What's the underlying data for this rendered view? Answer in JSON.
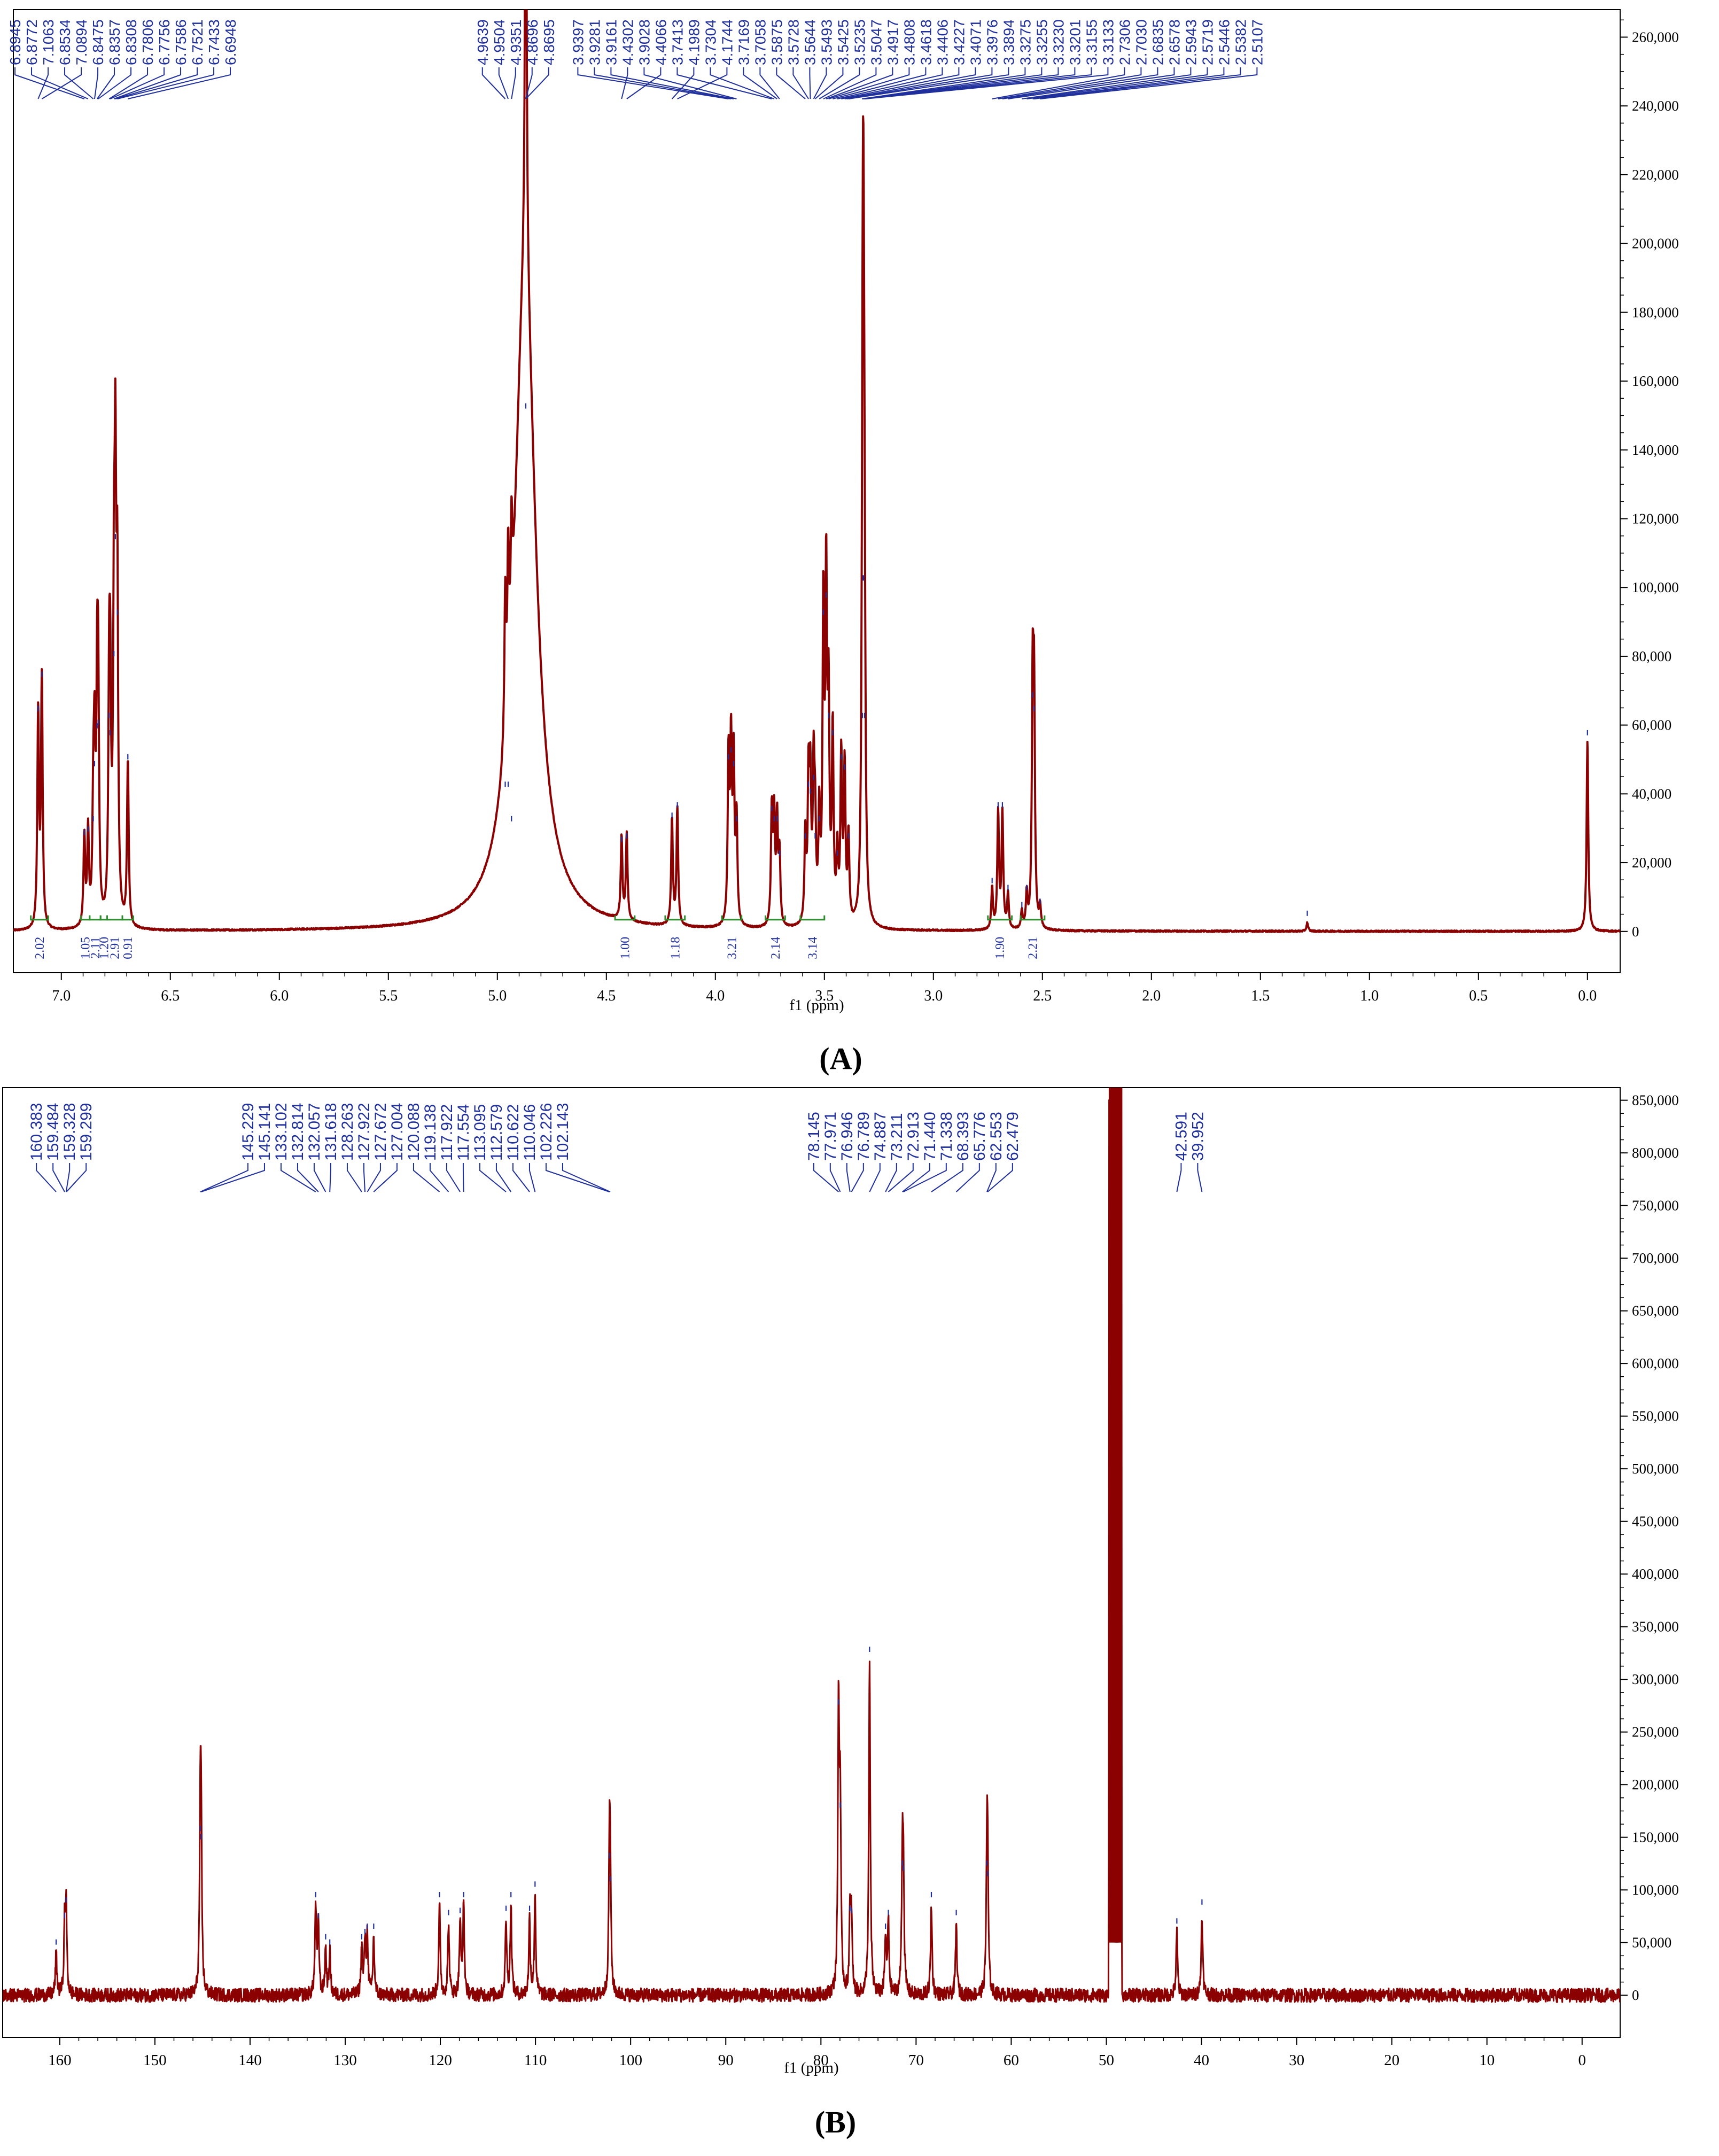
{
  "colors": {
    "spectrum": "#8B0000",
    "peak_label": "#1F2F9C",
    "integral": "#2E8B2E",
    "axis": "#000000"
  },
  "chart_data": [
    {
      "type": "line",
      "caption": "(A)",
      "xlabel": "f1 (ppm)",
      "x_reversed": true,
      "xlim": [
        7.22,
        -0.15
      ],
      "ylim": [
        -12000,
        268000
      ],
      "x_ticks": [
        7.0,
        6.5,
        6.0,
        5.5,
        5.0,
        4.5,
        4.0,
        3.5,
        3.0,
        2.5,
        2.0,
        1.5,
        1.0,
        0.5,
        0.0
      ],
      "x_tick_labels": [
        "7.0",
        "6.5",
        "6.0",
        "5.5",
        "5.0",
        "4.5",
        "4.0",
        "3.5",
        "3.0",
        "2.5",
        "2.0",
        "1.5",
        "1.0",
        "0.5",
        "0.0"
      ],
      "y_ticks": [
        0,
        20000,
        40000,
        60000,
        80000,
        100000,
        120000,
        140000,
        160000,
        180000,
        200000,
        220000,
        240000,
        260000
      ],
      "y_tick_labels": [
        "0",
        "20,000",
        "40,000",
        "60,000",
        "80,000",
        "100,000",
        "120,000",
        "140,000",
        "160,000",
        "180,000",
        "200,000",
        "220,000",
        "240,000",
        "260,000"
      ],
      "peak_label_groups": [
        [
          "7.1063",
          "7.0894"
        ],
        [
          "6.8945",
          "6.8772",
          "6.8534",
          "6.8475",
          "6.8357",
          "6.8308",
          "6.7806",
          "6.7756",
          "6.7586",
          "6.7521",
          "6.7433",
          "6.6948"
        ],
        [
          "4.9639",
          "4.9504",
          "4.9351",
          "4.8696",
          "4.8695"
        ],
        [
          "4.4302",
          "4.4066",
          "4.1989",
          "4.1744"
        ],
        [
          "3.9397",
          "3.9281",
          "3.9161",
          "3.9028",
          "3.7413",
          "3.7304",
          "3.7169",
          "3.7058",
          "3.5875",
          "3.5728",
          "3.5644",
          "3.5493",
          "3.5425",
          "3.5235",
          "3.5047",
          "3.4917",
          "3.4808",
          "3.4618",
          "3.4406",
          "3.4227",
          "3.4071",
          "3.3976",
          "3.3894",
          "3.3275",
          "3.3255",
          "3.3230",
          "3.3201",
          "3.3155",
          "3.3133",
          "2.7306",
          "2.7030",
          "2.6835",
          "2.6578",
          "2.5943",
          "2.5719",
          "2.5446",
          "2.5382",
          "2.5107"
        ]
      ],
      "integrals": [
        {
          "label": "2.02",
          "from": 7.14,
          "to": 7.06
        },
        {
          "label": "1.05",
          "from": 6.91,
          "to": 6.87
        },
        {
          "label": "2.11",
          "from": 6.87,
          "to": 6.82
        },
        {
          "label": "1.20",
          "from": 6.82,
          "to": 6.79
        },
        {
          "label": "2.91",
          "from": 6.79,
          "to": 6.72
        },
        {
          "label": "0.91",
          "from": 6.72,
          "to": 6.67
        },
        {
          "label": "1.00",
          "from": 4.46,
          "to": 4.37
        },
        {
          "label": "1.18",
          "from": 4.23,
          "to": 4.14
        },
        {
          "label": "3.21",
          "from": 3.97,
          "to": 3.88
        },
        {
          "label": "2.14",
          "from": 3.77,
          "to": 3.68
        },
        {
          "label": "3.14",
          "from": 3.61,
          "to": 3.5
        },
        {
          "label": "1.90",
          "from": 2.75,
          "to": 2.64
        },
        {
          "label": "2.21",
          "from": 2.6,
          "to": 2.49
        }
      ],
      "peaks": [
        {
          "x": 7.1063,
          "y": 62000
        },
        {
          "x": 7.0894,
          "y": 72000
        },
        {
          "x": 6.8945,
          "y": 26000
        },
        {
          "x": 6.8772,
          "y": 27000
        },
        {
          "x": 6.8534,
          "y": 30000
        },
        {
          "x": 6.8475,
          "y": 46000
        },
        {
          "x": 6.8357,
          "y": 57000
        },
        {
          "x": 6.8308,
          "y": 58000
        },
        {
          "x": 6.7806,
          "y": 60000
        },
        {
          "x": 6.7756,
          "y": 55000
        },
        {
          "x": 6.7586,
          "y": 78000
        },
        {
          "x": 6.7521,
          "y": 112000
        },
        {
          "x": 6.7433,
          "y": 90000
        },
        {
          "x": 6.6948,
          "y": 48000
        },
        {
          "x": 4.9639,
          "y": 40000
        },
        {
          "x": 4.9504,
          "y": 40000
        },
        {
          "x": 4.9351,
          "y": 30000
        },
        {
          "x": 4.8696,
          "y": 150000
        },
        {
          "x": 4.4302,
          "y": 24000
        },
        {
          "x": 4.4066,
          "y": 25000
        },
        {
          "x": 4.1989,
          "y": 31000
        },
        {
          "x": 4.1744,
          "y": 34000
        },
        {
          "x": 3.9397,
          "y": 48000
        },
        {
          "x": 3.9281,
          "y": 50000
        },
        {
          "x": 3.9161,
          "y": 46000
        },
        {
          "x": 3.9028,
          "y": 30000
        },
        {
          "x": 3.7413,
          "y": 33000
        },
        {
          "x": 3.7304,
          "y": 30000
        },
        {
          "x": 3.7169,
          "y": 30000
        },
        {
          "x": 3.7058,
          "y": 20000
        },
        {
          "x": 3.5875,
          "y": 25000
        },
        {
          "x": 3.5728,
          "y": 40000
        },
        {
          "x": 3.5644,
          "y": 38000
        },
        {
          "x": 3.5493,
          "y": 42000
        },
        {
          "x": 3.5425,
          "y": 25000
        },
        {
          "x": 3.5235,
          "y": 30000
        },
        {
          "x": 3.5047,
          "y": 90000
        },
        {
          "x": 3.4917,
          "y": 95000
        },
        {
          "x": 3.4808,
          "y": 60000
        },
        {
          "x": 3.4618,
          "y": 55000
        },
        {
          "x": 3.4406,
          "y": 20000
        },
        {
          "x": 3.4227,
          "y": 48000
        },
        {
          "x": 3.4071,
          "y": 45000
        },
        {
          "x": 3.3894,
          "y": 25000
        },
        {
          "x": 3.3255,
          "y": 60000
        },
        {
          "x": 3.323,
          "y": 100000
        },
        {
          "x": 3.3201,
          "y": 100000
        },
        {
          "x": 3.3155,
          "y": 60000
        },
        {
          "x": 2.7306,
          "y": 12000
        },
        {
          "x": 2.703,
          "y": 34000
        },
        {
          "x": 2.6835,
          "y": 34000
        },
        {
          "x": 2.6578,
          "y": 10000
        },
        {
          "x": 2.5943,
          "y": 5000
        },
        {
          "x": 2.5719,
          "y": 10000
        },
        {
          "x": 2.5446,
          "y": 66000
        },
        {
          "x": 2.5382,
          "y": 62000
        },
        {
          "x": 2.5107,
          "y": 6000
        },
        {
          "x": 1.285,
          "y": 2500
        },
        {
          "x": 0.0,
          "y": 55000
        }
      ],
      "broad_peaks": [
        {
          "x": 4.873,
          "y": 190000,
          "width": 0.06
        }
      ]
    },
    {
      "type": "line",
      "caption": "(B)",
      "xlabel": "f1 (ppm)",
      "x_reversed": true,
      "xlim": [
        166,
        -4
      ],
      "ylim": [
        -40000,
        862000
      ],
      "x_ticks": [
        160,
        150,
        140,
        130,
        120,
        110,
        100,
        90,
        80,
        70,
        60,
        50,
        40,
        30,
        20,
        10,
        0
      ],
      "x_tick_labels": [
        "160",
        "150",
        "140",
        "130",
        "120",
        "110",
        "100",
        "90",
        "80",
        "70",
        "60",
        "50",
        "40",
        "30",
        "20",
        "10",
        "0"
      ],
      "y_ticks": [
        0,
        50000,
        100000,
        150000,
        200000,
        250000,
        300000,
        350000,
        400000,
        450000,
        500000,
        550000,
        600000,
        650000,
        700000,
        750000,
        800000,
        850000
      ],
      "y_tick_labels": [
        "0",
        "50,000",
        "100,000",
        "150,000",
        "200,000",
        "250,000",
        "300,000",
        "350,000",
        "400,000",
        "450,000",
        "500,000",
        "550,000",
        "600,000",
        "650,000",
        "700,000",
        "750,000",
        "800,000",
        "850,000"
      ],
      "peak_label_groups": [
        [
          "160.383",
          "159.484",
          "159.328",
          "159.299"
        ],
        [
          "145.229",
          "145.141",
          "133.102",
          "132.814",
          "132.057",
          "131.618",
          "128.263",
          "127.922",
          "127.672",
          "127.004",
          "120.088",
          "119.138",
          "117.922",
          "117.554",
          "113.095",
          "112.579",
          "110.622",
          "110.046",
          "102.226",
          "102.143"
        ],
        [
          "78.145",
          "77.971",
          "76.946",
          "76.789",
          "74.887",
          "73.211",
          "72.913",
          "71.440",
          "71.338",
          "68.393",
          "65.776",
          "62.553",
          "62.479"
        ],
        [
          "42.591",
          "39.952"
        ]
      ],
      "peaks": [
        {
          "x": 160.383,
          "y": 40000
        },
        {
          "x": 159.484,
          "y": 65000
        },
        {
          "x": 159.328,
          "y": 80000
        },
        {
          "x": 145.229,
          "y": 148000
        },
        {
          "x": 145.141,
          "y": 140000
        },
        {
          "x": 133.102,
          "y": 85000
        },
        {
          "x": 132.814,
          "y": 65000
        },
        {
          "x": 132.057,
          "y": 45000
        },
        {
          "x": 131.618,
          "y": 40000
        },
        {
          "x": 128.263,
          "y": 45000
        },
        {
          "x": 127.922,
          "y": 50000
        },
        {
          "x": 127.672,
          "y": 55000
        },
        {
          "x": 127.004,
          "y": 55000
        },
        {
          "x": 120.088,
          "y": 85000
        },
        {
          "x": 119.138,
          "y": 68000
        },
        {
          "x": 117.922,
          "y": 70000
        },
        {
          "x": 117.554,
          "y": 85000
        },
        {
          "x": 113.095,
          "y": 72000
        },
        {
          "x": 112.579,
          "y": 85000
        },
        {
          "x": 110.622,
          "y": 72000
        },
        {
          "x": 110.046,
          "y": 95000
        },
        {
          "x": 102.226,
          "y": 122000
        },
        {
          "x": 102.143,
          "y": 100000
        },
        {
          "x": 78.145,
          "y": 268000
        },
        {
          "x": 77.971,
          "y": 170000
        },
        {
          "x": 76.946,
          "y": 72000
        },
        {
          "x": 76.789,
          "y": 70000
        },
        {
          "x": 74.887,
          "y": 318000
        },
        {
          "x": 73.211,
          "y": 55000
        },
        {
          "x": 72.913,
          "y": 68000
        },
        {
          "x": 71.44,
          "y": 115000
        },
        {
          "x": 71.338,
          "y": 110000
        },
        {
          "x": 68.393,
          "y": 85000
        },
        {
          "x": 65.776,
          "y": 68000
        },
        {
          "x": 62.553,
          "y": 115000
        },
        {
          "x": 62.479,
          "y": 105000
        },
        {
          "x": 42.591,
          "y": 60000
        },
        {
          "x": 39.952,
          "y": 78000
        }
      ],
      "solvent_band": {
        "from": 49.75,
        "to": 48.35,
        "y_top": 862000,
        "y_base": 50000,
        "spikes": [
          {
            "x": 49.0,
            "y": 185000
          },
          {
            "x": 48.8,
            "y": 150000
          }
        ]
      }
    }
  ]
}
